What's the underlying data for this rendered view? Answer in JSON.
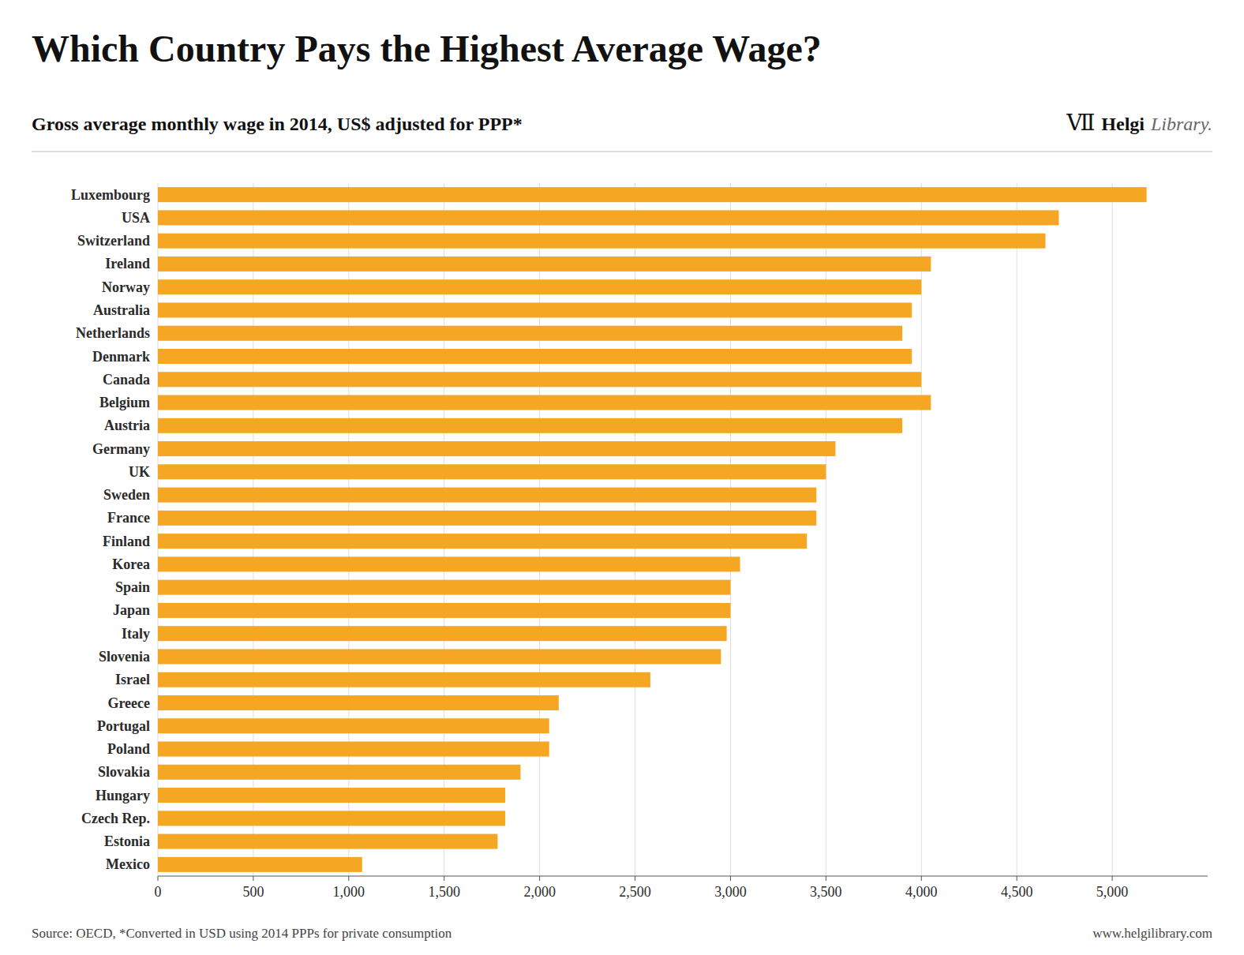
{
  "chart_data": {
    "type": "bar",
    "orientation": "horizontal",
    "title": "Which Country Pays the Highest Average Wage?",
    "subtitle": "Gross average monthly wage in 2014, US$ adjusted for PPP*",
    "annotations": [
      "Ⅶ",
      "Helgi",
      "Library.",
      "Source: OECD, *Converted in USD using 2014 PPPs for private consumption",
      "www.helgilibrary.com"
    ],
    "categories": [
      "Luxembourg",
      "USA",
      "Switzerland",
      "Ireland",
      "Norway",
      "Australia",
      "Netherlands",
      "Denmark",
      "Canada",
      "Belgium",
      "Austria",
      "Germany",
      "UK",
      "Sweden",
      "France",
      "Finland",
      "Korea",
      "Spain",
      "Japan",
      "Italy",
      "Slovenia",
      "Israel",
      "Greece",
      "Portugal",
      "Poland",
      "Slovakia",
      "Hungary",
      "Czech Rep.",
      "Estonia",
      "Mexico"
    ],
    "values": [
      5180,
      4720,
      4650,
      4050,
      4000,
      3950,
      3900,
      3950,
      4000,
      4050,
      3900,
      3550,
      3500,
      3450,
      3450,
      3400,
      3050,
      3000,
      3000,
      2980,
      2950,
      2580,
      2100,
      2050,
      2050,
      1900,
      1820,
      1820,
      1780,
      1070
    ],
    "color": "#F5A623",
    "xlim": [
      0,
      5500
    ],
    "xticks": [
      0,
      500,
      {
        "value": 1000,
        "label": "1,000"
      },
      {
        "value": 1500,
        "label": "1,500"
      },
      {
        "value": 2000,
        "label": "2,000"
      },
      {
        "value": 2500,
        "label": "2,500"
      },
      {
        "value": 3000,
        "label": "3,000"
      },
      {
        "value": 3500,
        "label": "3,500"
      },
      {
        "value": 4000,
        "label": "4,000"
      },
      {
        "value": 4500,
        "label": "4,500"
      },
      {
        "value": 5000,
        "label": "5,000"
      }
    ],
    "grid": true
  }
}
